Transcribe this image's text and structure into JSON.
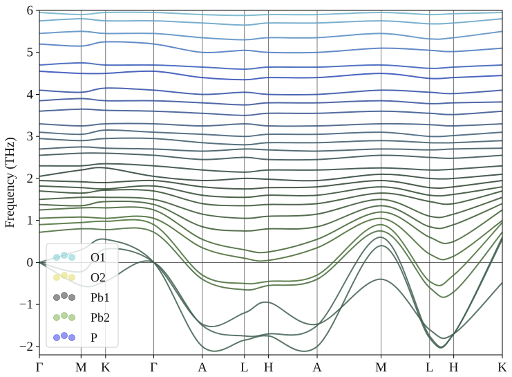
{
  "chart_data": {
    "type": "line",
    "title": "",
    "xlabel": "",
    "ylabel": "Frequency (THz)",
    "ylim": [
      -2.2,
      6
    ],
    "yticks": [
      -2,
      -1,
      0,
      1,
      2,
      3,
      4,
      5,
      6
    ],
    "ytick_labels": [
      "−2",
      "−1",
      "0",
      "1",
      "2",
      "3",
      "4",
      "5",
      "6"
    ],
    "high_symmetry_points": [
      "Γ",
      "M",
      "K",
      "Γ",
      "A",
      "L",
      "H",
      "A",
      "M",
      "L",
      "H",
      "K"
    ],
    "path_positions": [
      0,
      0.09,
      0.143,
      0.247,
      0.352,
      0.443,
      0.495,
      0.6,
      0.738,
      0.843,
      0.895,
      1.0
    ],
    "zero_line": true,
    "legend": {
      "position": "lower-left",
      "entries": [
        {
          "label": "O1",
          "color": "#7ecfd6"
        },
        {
          "label": "O2",
          "color": "#e3dd6b"
        },
        {
          "label": "Pb1",
          "color": "#3d3d3d"
        },
        {
          "label": "Pb2",
          "color": "#7fb356"
        },
        {
          "label": "P",
          "color": "#3e45e6"
        }
      ]
    },
    "series": [
      {
        "values": [
          0,
          -0.22,
          0.32,
          0,
          -1.47,
          -1.2,
          -0.95,
          -1.47,
          -0.4,
          -1.6,
          -1.7,
          -0.48
        ]
      },
      {
        "values": [
          0,
          0.3,
          0.55,
          0,
          -2.0,
          -1.85,
          -1.75,
          -2.0,
          0.4,
          -1.8,
          -1.7,
          0.6
        ]
      },
      {
        "values": [
          0,
          -0.55,
          -0.45,
          0,
          -1.5,
          -1.75,
          -1.7,
          -1.5,
          0.6,
          -1.75,
          -1.7,
          0.55
        ]
      },
      {
        "values": [
          0.72,
          0.8,
          0.78,
          0.72,
          -0.4,
          -0.65,
          -0.55,
          -0.4,
          0.75,
          -0.6,
          -0.7,
          0.72
        ]
      },
      {
        "values": [
          0.9,
          0.95,
          0.98,
          0.9,
          -0.3,
          -0.5,
          -0.45,
          -0.3,
          0.9,
          -0.45,
          -0.3,
          0.95
        ]
      },
      {
        "values": [
          1.05,
          1.08,
          1.05,
          1.05,
          0.35,
          0.1,
          0.05,
          0.35,
          1.05,
          0.2,
          0.15,
          1.0
        ]
      },
      {
        "values": [
          1.25,
          1.3,
          1.3,
          1.25,
          0.55,
          0.3,
          0.25,
          0.55,
          1.2,
          0.6,
          0.5,
          1.25
        ]
      },
      {
        "values": [
          1.38,
          1.35,
          1.45,
          1.38,
          0.85,
          0.75,
          0.8,
          0.85,
          1.35,
          0.85,
          0.9,
          1.4
        ]
      },
      {
        "values": [
          1.5,
          1.55,
          1.55,
          1.5,
          1.15,
          1.05,
          1.1,
          1.15,
          1.5,
          1.1,
          1.15,
          1.55
        ]
      },
      {
        "values": [
          1.7,
          1.65,
          1.72,
          1.7,
          1.4,
          1.35,
          1.38,
          1.4,
          1.65,
          1.45,
          1.4,
          1.7
        ]
      },
      {
        "values": [
          1.82,
          1.78,
          1.75,
          1.82,
          1.6,
          1.55,
          1.6,
          1.6,
          1.8,
          1.6,
          1.62,
          1.8
        ]
      },
      {
        "values": [
          1.95,
          1.92,
          1.9,
          1.95,
          1.8,
          1.75,
          1.78,
          1.8,
          1.95,
          1.78,
          1.8,
          1.95
        ]
      },
      {
        "values": [
          2.05,
          2.2,
          2.25,
          2.05,
          1.95,
          2.0,
          1.98,
          1.95,
          2.1,
          2.0,
          2.0,
          2.1
        ]
      },
      {
        "values": [
          2.3,
          2.3,
          2.35,
          2.3,
          2.2,
          2.15,
          2.2,
          2.2,
          2.25,
          2.2,
          2.22,
          2.3
        ]
      },
      {
        "values": [
          2.55,
          2.6,
          2.6,
          2.55,
          2.45,
          2.5,
          2.45,
          2.45,
          2.55,
          2.5,
          2.48,
          2.55
        ]
      },
      {
        "values": [
          2.7,
          2.75,
          2.72,
          2.7,
          2.65,
          2.7,
          2.68,
          2.65,
          2.7,
          2.68,
          2.7,
          2.72
        ]
      },
      {
        "values": [
          2.95,
          2.9,
          2.95,
          2.95,
          2.85,
          2.8,
          2.85,
          2.85,
          2.9,
          2.85,
          2.85,
          2.9
        ]
      },
      {
        "values": [
          3.1,
          3.05,
          3.15,
          3.1,
          3.05,
          3.0,
          3.05,
          3.05,
          3.1,
          3.0,
          3.02,
          3.1
        ]
      },
      {
        "values": [
          3.3,
          3.25,
          3.3,
          3.3,
          3.25,
          3.3,
          3.25,
          3.25,
          3.3,
          3.28,
          3.25,
          3.3
        ]
      },
      {
        "values": [
          3.6,
          3.65,
          3.62,
          3.6,
          3.55,
          3.5,
          3.55,
          3.55,
          3.6,
          3.55,
          3.52,
          3.6
        ]
      },
      {
        "values": [
          3.85,
          3.9,
          3.85,
          3.85,
          3.8,
          3.75,
          3.8,
          3.8,
          3.85,
          3.78,
          3.8,
          3.82
        ]
      },
      {
        "values": [
          4.1,
          4.05,
          4.15,
          4.1,
          4.0,
          4.05,
          4.0,
          4.0,
          4.1,
          4.05,
          4.02,
          4.1
        ]
      },
      {
        "values": [
          4.55,
          4.5,
          4.5,
          4.55,
          4.4,
          4.35,
          4.4,
          4.4,
          4.5,
          4.38,
          4.4,
          4.45
        ]
      },
      {
        "values": [
          4.7,
          4.75,
          4.7,
          4.7,
          4.65,
          4.6,
          4.65,
          4.65,
          4.7,
          4.62,
          4.65,
          4.7
        ]
      },
      {
        "values": [
          5.2,
          5.15,
          5.25,
          5.2,
          5.0,
          5.05,
          5.0,
          5.0,
          5.1,
          5.05,
          5.02,
          5.1
        ]
      },
      {
        "values": [
          5.45,
          5.5,
          5.45,
          5.45,
          5.35,
          5.3,
          5.35,
          5.35,
          5.45,
          5.32,
          5.35,
          5.5
        ]
      },
      {
        "values": [
          5.75,
          5.8,
          5.75,
          5.75,
          5.7,
          5.65,
          5.7,
          5.7,
          5.75,
          5.68,
          5.7,
          5.8
        ]
      },
      {
        "values": [
          5.95,
          5.9,
          5.95,
          5.95,
          5.9,
          5.88,
          5.9,
          5.9,
          5.95,
          5.9,
          5.92,
          5.95
        ]
      }
    ]
  }
}
